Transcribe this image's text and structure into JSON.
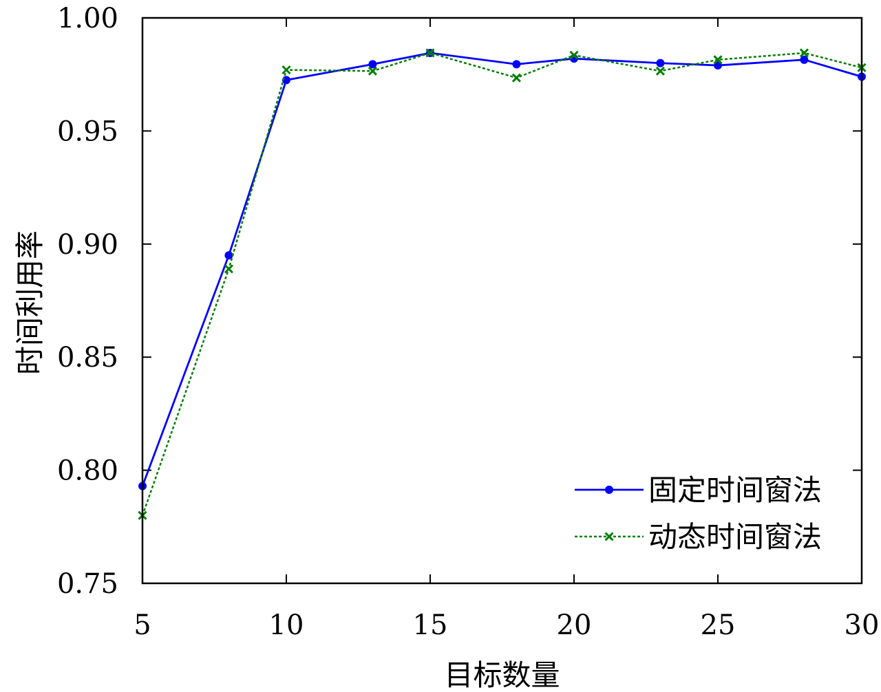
{
  "chart_data": {
    "type": "line",
    "title": "",
    "xlabel": "目标数量",
    "ylabel": "时间利用率",
    "xlim": [
      5,
      30
    ],
    "ylim": [
      0.75,
      1.0
    ],
    "xticks": [
      5,
      10,
      15,
      20,
      25,
      30
    ],
    "xtick_labels": [
      "5",
      "10",
      "15",
      "20",
      "25",
      "30"
    ],
    "yticks": [
      0.75,
      0.8,
      0.85,
      0.9,
      0.95,
      1.0
    ],
    "ytick_labels": [
      "0.75",
      "0.80",
      "0.85",
      "0.90",
      "0.95",
      "1.00"
    ],
    "grid": false,
    "legend_position": "bottom-right",
    "series": [
      {
        "name": "固定时间窗法",
        "color": "#0000ff",
        "line_style": "solid",
        "marker": "circle",
        "x": [
          5,
          8,
          10,
          13,
          15,
          18,
          20,
          23,
          25,
          28,
          30
        ],
        "y": [
          0.793,
          0.895,
          0.9725,
          0.9795,
          0.9845,
          0.9795,
          0.982,
          0.98,
          0.979,
          0.9815,
          0.974
        ]
      },
      {
        "name": "动态时间窗法",
        "color": "#007f00",
        "line_style": "dotted",
        "marker": "x",
        "x": [
          5,
          8,
          10,
          13,
          15,
          18,
          20,
          23,
          25,
          28,
          30
        ],
        "y": [
          0.78,
          0.889,
          0.977,
          0.9765,
          0.9845,
          0.9735,
          0.9835,
          0.9765,
          0.9815,
          0.9845,
          0.978
        ]
      }
    ]
  }
}
